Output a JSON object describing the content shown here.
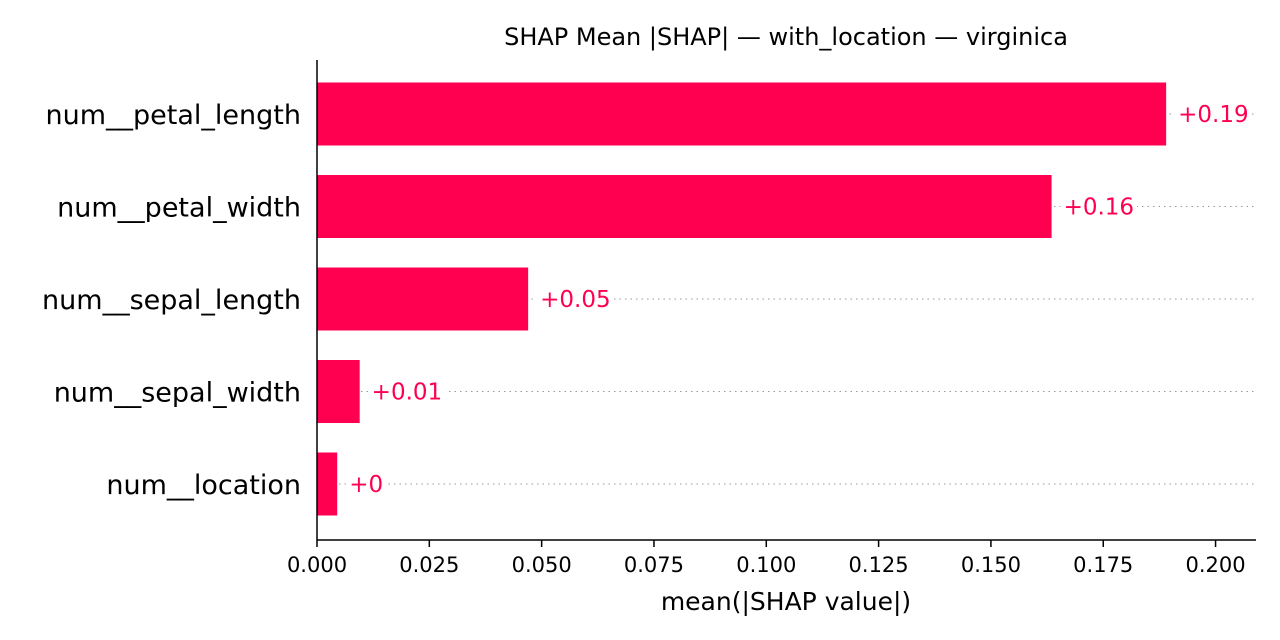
{
  "chart_data": {
    "type": "bar",
    "orientation": "horizontal",
    "title": "SHAP Mean |SHAP| — with_location — virginica",
    "xlabel": "mean(|SHAP value|)",
    "ylabel": "",
    "categories": [
      "num__petal_length",
      "num__petal_width",
      "num__sepal_length",
      "num__sepal_width",
      "num__location"
    ],
    "values": [
      0.189,
      0.1635,
      0.047,
      0.0095,
      0.0045
    ],
    "value_labels": [
      "+0.19",
      "+0.16",
      "+0.05",
      "+0.01",
      "+0"
    ],
    "xlim": [
      0,
      0.209
    ],
    "xticks": [
      0.0,
      0.025,
      0.05,
      0.075,
      0.1,
      0.125,
      0.15,
      0.175,
      0.2
    ],
    "xtick_labels": [
      "0.000",
      "0.025",
      "0.050",
      "0.075",
      "0.100",
      "0.125",
      "0.150",
      "0.175",
      "0.200"
    ],
    "grid": "dotted row guides",
    "bar_color": "#ff0051",
    "label_color": "#ff0051"
  }
}
